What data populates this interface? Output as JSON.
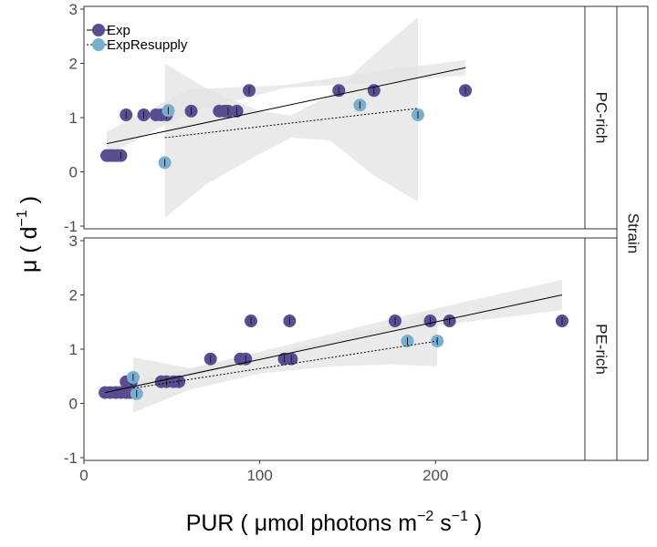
{
  "chart_data": {
    "type": "scatter",
    "xlabel": "PUR ( μmol photons  m⁻² s⁻¹ )",
    "xlabel_parts": {
      "main": "PUR ( μmol photons  m",
      "exp1": "−2",
      "mid": " s",
      "exp2": "−1",
      "end": " )"
    },
    "ylabel_parts": {
      "main": "μ ( d",
      "exp": "−1",
      "end": " )"
    },
    "facet_outer_label": "Strain",
    "xlim": [
      0,
      285
    ],
    "ylim": [
      -1.05,
      3.05
    ],
    "xticks": [
      0,
      100,
      200
    ],
    "yticks": [
      -1,
      0,
      1,
      2,
      3
    ],
    "legend": {
      "placement": "top-left",
      "entries": [
        {
          "name": "Exp",
          "color": "#5b4d92",
          "line": "solid"
        },
        {
          "name": "ExpResupply",
          "color": "#79aecf",
          "line": "dotted"
        }
      ]
    },
    "panels": [
      {
        "strip": "PC-rich",
        "series": [
          {
            "name": "Exp",
            "points": [
              [
                13,
                0.3
              ],
              [
                15,
                0.3
              ],
              [
                17,
                0.3
              ],
              [
                19,
                0.3
              ],
              [
                21,
                0.3
              ],
              [
                24,
                1.05
              ],
              [
                34,
                1.05
              ],
              [
                41,
                1.05
              ],
              [
                44,
                1.05
              ],
              [
                47,
                1.05
              ],
              [
                61,
                1.12
              ],
              [
                77,
                1.12
              ],
              [
                80,
                1.12
              ],
              [
                82,
                1.12
              ],
              [
                87,
                1.12
              ],
              [
                94,
                1.5
              ],
              [
                145,
                1.5
              ],
              [
                165,
                1.5
              ],
              [
                217,
                1.5
              ]
            ],
            "fit": [
              [
                13,
                0.52
              ],
              [
                217,
                1.92
              ]
            ],
            "ci": [
              [
                13,
                0.3,
                0.74
              ],
              [
                60,
                1.1,
                1.52
              ],
              [
                115,
                1.55,
                1.6
              ],
              [
                170,
                1.65,
                1.87
              ],
              [
                217,
                1.78,
                2.06
              ]
            ]
          },
          {
            "name": "ExpResupply",
            "points": [
              [
                46,
                0.17
              ],
              [
                48,
                1.13
              ],
              [
                157,
                1.23
              ],
              [
                190,
                1.05
              ]
            ],
            "fit": [
              [
                46,
                0.63
              ],
              [
                190,
                1.17
              ]
            ],
            "ci": [
              [
                46,
                -0.85,
                2.0
              ],
              [
                70,
                -0.22,
                1.53
              ],
              [
                100,
                0.33,
                1.12
              ],
              [
                118,
                0.63,
                1.04
              ],
              [
                140,
                0.58,
                1.42
              ],
              [
                165,
                -0.07,
                2.16
              ],
              [
                190,
                -0.55,
                2.85
              ]
            ]
          }
        ]
      },
      {
        "strip": "PE-rich",
        "series": [
          {
            "name": "Exp",
            "points": [
              [
                12,
                0.2
              ],
              [
                15,
                0.2
              ],
              [
                18,
                0.2
              ],
              [
                21,
                0.2
              ],
              [
                24,
                0.2
              ],
              [
                26,
                0.2
              ],
              [
                28,
                0.2
              ],
              [
                24,
                0.4
              ],
              [
                27,
                0.4
              ],
              [
                44,
                0.4
              ],
              [
                47,
                0.4
              ],
              [
                51,
                0.4
              ],
              [
                54,
                0.4
              ],
              [
                72,
                0.82
              ],
              [
                89,
                0.82
              ],
              [
                92,
                0.82
              ],
              [
                114,
                0.82
              ],
              [
                118,
                0.82
              ],
              [
                95,
                1.52
              ],
              [
                117,
                1.52
              ],
              [
                177,
                1.52
              ],
              [
                197,
                1.52
              ],
              [
                208,
                1.52
              ],
              [
                272,
                1.52
              ]
            ],
            "fit": [
              [
                12,
                0.2
              ],
              [
                272,
                2.0
              ]
            ],
            "ci": [
              [
                12,
                0.12,
                0.28
              ],
              [
                100,
                0.8,
                0.95
              ],
              [
                180,
                1.35,
                1.6
              ],
              [
                272,
                1.72,
                2.28
              ]
            ]
          },
          {
            "name": "ExpResupply",
            "points": [
              [
                28,
                0.48
              ],
              [
                30,
                0.18
              ],
              [
                184,
                1.15
              ],
              [
                201,
                1.15
              ]
            ],
            "fit": [
              [
                28,
                0.28
              ],
              [
                201,
                1.15
              ]
            ],
            "ci": [
              [
                28,
                -0.17,
                0.85
              ],
              [
                60,
                0.25,
                0.65
              ],
              [
                100,
                0.55,
                0.87
              ],
              [
                140,
                0.68,
                1.18
              ],
              [
                175,
                0.72,
                1.45
              ],
              [
                201,
                0.68,
                1.7
              ]
            ]
          }
        ]
      }
    ]
  },
  "colors": {
    "exp": "#5b4d92",
    "resupply": "#79aecf",
    "ribbon": "#e3e3e3",
    "axis": "#333333"
  }
}
